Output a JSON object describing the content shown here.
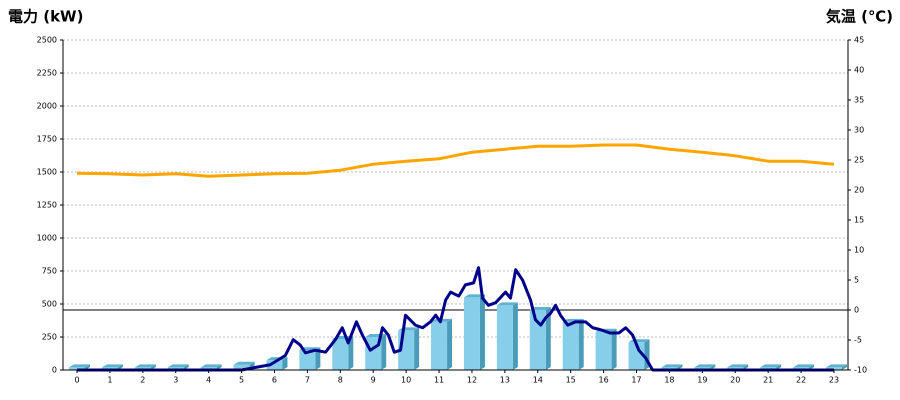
{
  "chart_data": {
    "type": "combo",
    "y_title": "電力 (kW)",
    "y2_title": "気温 (℃)",
    "y_title_color": "#1a5fb4",
    "y2_title_color": "#f08a24",
    "categories": [
      "0",
      "1",
      "2",
      "3",
      "4",
      "5",
      "6",
      "7",
      "8",
      "9",
      "10",
      "11",
      "12",
      "13",
      "14",
      "15",
      "16",
      "17",
      "18",
      "19",
      "20",
      "21",
      "22",
      "23"
    ],
    "ylim": [
      0,
      2500
    ],
    "yticks": [
      0,
      250,
      500,
      750,
      1000,
      1250,
      1500,
      1750,
      2000,
      2250,
      2500
    ],
    "y2lim": [
      -10,
      45
    ],
    "y2ticks": [
      -10,
      -5,
      0,
      5,
      10,
      15,
      20,
      25,
      30,
      35,
      40,
      45
    ],
    "grid": true,
    "series": [
      {
        "type": "bar",
        "color": "#87ceeb",
        "values": [
          20,
          20,
          20,
          20,
          20,
          40,
          75,
          150,
          235,
          250,
          300,
          365,
          550,
          490,
          455,
          365,
          290,
          210,
          20,
          20,
          20,
          20,
          20,
          20
        ]
      },
      {
        "type": "line",
        "color": "#00008b",
        "x": [
          0,
          1,
          2,
          3,
          4,
          5,
          5.87,
          6.33,
          6.57,
          6.78,
          6.94,
          7.24,
          7.55,
          7.85,
          8.06,
          8.24,
          8.49,
          8.67,
          8.91,
          9.16,
          9.28,
          9.46,
          9.64,
          9.83,
          9.98,
          10.28,
          10.5,
          10.74,
          10.9,
          11.04,
          11.2,
          11.35,
          11.6,
          11.8,
          12.05,
          12.2,
          12.32,
          12.5,
          12.72,
          13.02,
          13.17,
          13.33,
          13.54,
          13.78,
          13.93,
          14.09,
          14.24,
          14.39,
          14.54,
          14.69,
          14.91,
          15.15,
          15.45,
          15.67,
          15.91,
          16.2,
          16.46,
          16.67,
          16.88,
          17.07,
          17.28,
          17.49,
          18,
          19,
          20,
          21,
          22,
          23
        ],
        "values": [
          0,
          0,
          0,
          0,
          0,
          0,
          40,
          110,
          230,
          190,
          130,
          150,
          135,
          230,
          320,
          205,
          365,
          265,
          150,
          190,
          320,
          265,
          135,
          150,
          415,
          340,
          320,
          365,
          415,
          365,
          530,
          590,
          560,
          645,
          660,
          775,
          545,
          490,
          510,
          590,
          545,
          760,
          680,
          530,
          380,
          340,
          395,
          430,
          490,
          415,
          340,
          365,
          365,
          320,
          305,
          280,
          280,
          320,
          265,
          150,
          90,
          0,
          0,
          0,
          0,
          0,
          0,
          0
        ]
      },
      {
        "type": "line",
        "axis": "y2",
        "color": "#ffa500",
        "values": [
          22.8,
          22.7,
          22.5,
          22.7,
          22.3,
          22.5,
          22.7,
          22.8,
          23.3,
          24.3,
          24.8,
          25.2,
          26.3,
          26.8,
          27.3,
          27.3,
          27.5,
          27.5,
          26.8,
          26.3,
          25.7,
          24.8,
          24.8,
          24.3
        ]
      }
    ]
  }
}
